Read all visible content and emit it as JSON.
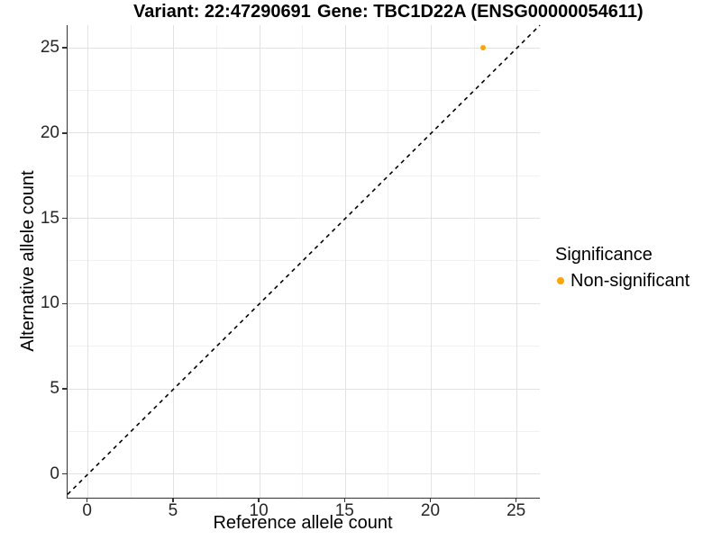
{
  "header": {
    "variant_title": "Variant: 22:47290691",
    "gene_title": "Gene: TBC1D22A (ENSG00000054611)"
  },
  "chart_data": {
    "type": "scatter",
    "xlabel": "Reference allele count",
    "ylabel": "Alternative allele count",
    "xlim": [
      -1.25,
      26.33
    ],
    "ylim": [
      -1.39,
      26.33
    ],
    "x_ticks": [
      0,
      5,
      10,
      15,
      20,
      25
    ],
    "y_ticks": [
      0,
      5,
      10,
      15,
      20,
      25
    ],
    "grid": "major and minor gridlines on",
    "series": [
      {
        "name": "Non-significant",
        "color": "#FFA500",
        "points": [
          [
            23,
            25
          ]
        ]
      }
    ],
    "reference_line": {
      "type": "identity y=x",
      "style": "dashed",
      "color": "#000000"
    },
    "legend": {
      "title": "Significance",
      "position": "right",
      "items": [
        {
          "label": "Non-significant",
          "color": "#FFA500"
        }
      ]
    }
  },
  "colors": {
    "axis_line": "#333333",
    "tick_label": "#262626",
    "grid_major": "#e2e2e2",
    "grid_minor": "#f1f1f1",
    "point_orange": "#FFA500",
    "background": "#ffffff"
  }
}
